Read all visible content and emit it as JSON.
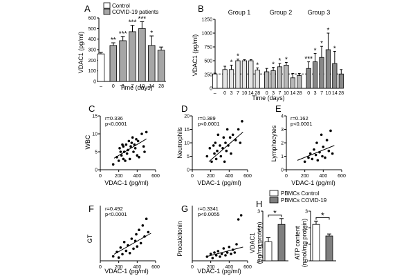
{
  "panels": {
    "A": {
      "letter": "A",
      "ylabel": "VDAC1 (pg/ml)",
      "xlabel": "Time (days)",
      "yticks": [
        0,
        100,
        200,
        300,
        400,
        500,
        600
      ],
      "legend": [
        {
          "label": "Control",
          "fill": "#ffffff"
        },
        {
          "label": "COVID-19 patients",
          "fill": "#a6a6a6"
        }
      ]
    },
    "B": {
      "letter": "B",
      "ylabel": "VDAC1 (pg/ml)",
      "xlabel": "Time (days)",
      "yticks": [
        0,
        250,
        500,
        750,
        1000,
        1250
      ],
      "group_titles": [
        "Group 1",
        "Group 2",
        "Group 3"
      ]
    },
    "C": {
      "letter": "C",
      "ylabel": "WBC",
      "xlabel": "VDAC-1 (pg/ml)",
      "r": "r=0.336",
      "p": "p<0.0001"
    },
    "D": {
      "letter": "D",
      "ylabel": "Neutrophils",
      "xlabel": "VDAC-1 (pg/ml)",
      "r": "r=0.389",
      "p": "p<0.0001"
    },
    "E": {
      "letter": "E",
      "ylabel": "Lymphocytes",
      "xlabel": "VDAC-1 (pg/ml)",
      "r": "r=0.162",
      "p": "p<0.0001"
    },
    "F": {
      "letter": "F",
      "ylabel": "GT",
      "xlabel": "VDAC-1 (pg/ml)",
      "r": "r=0.492",
      "p": "p<0.0001"
    },
    "G": {
      "letter": "G",
      "ylabel": "Procalcitonin",
      "xlabel": "VDAC-1 (pg/ml)",
      "r": "r=0.3341",
      "p": "p<0.0055"
    },
    "H": {
      "letter": "H",
      "legend": [
        {
          "label": "PBMCs Control",
          "fill": "#ffffff"
        },
        {
          "label": "PBMCs COVID-19",
          "fill": "#7f7f7f"
        }
      ],
      "left_ylabel_1": "VDAC1",
      "left_ylabel_2": "(pg/mg protein)",
      "right_ylabel_1": "ATP content",
      "right_ylabel_2": "(nmol/mg protein)"
    }
  },
  "chart_data": [
    {
      "panel": "A",
      "type": "bar",
      "categories": [
        "–",
        "0",
        "3",
        "7",
        "10",
        "14",
        "28"
      ],
      "values": [
        260,
        340,
        385,
        470,
        500,
        340,
        295
      ],
      "errors": [
        15,
        25,
        40,
        60,
        65,
        90,
        30
      ],
      "fills": [
        "#ffffff",
        "#a6a6a6",
        "#a6a6a6",
        "#a6a6a6",
        "#a6a6a6",
        "#a6a6a6",
        "#a6a6a6"
      ],
      "significance": [
        "",
        "**",
        "***",
        "***",
        "***",
        "*",
        ""
      ],
      "ylim": [
        0,
        600
      ]
    },
    {
      "panel": "B",
      "type": "bar",
      "categories": [
        "–",
        "0",
        "3",
        "7",
        "10",
        "14",
        "28",
        "0",
        "3",
        "7",
        "10",
        "14",
        "28",
        "0",
        "3",
        "7",
        "10",
        "14",
        "28"
      ],
      "values": [
        260,
        340,
        340,
        500,
        500,
        500,
        330,
        300,
        320,
        390,
        420,
        190,
        230,
        360,
        480,
        560,
        700,
        450,
        260
      ],
      "errors": [
        15,
        60,
        80,
        30,
        20,
        20,
        40,
        60,
        60,
        60,
        50,
        80,
        40,
        120,
        150,
        200,
        300,
        220,
        80
      ],
      "fills": [
        "#ffffff",
        "#e4e4e4",
        "#e4e4e4",
        "#e4e4e4",
        "#e4e4e4",
        "#e4e4e4",
        "#e4e4e4",
        "#b8b8b8",
        "#b8b8b8",
        "#b8b8b8",
        "#b8b8b8",
        "#b8b8b8",
        "#b8b8b8",
        "#888888",
        "#888888",
        "#888888",
        "#888888",
        "#888888",
        "#888888"
      ],
      "significance": [
        "",
        "",
        "*",
        "*",
        "",
        "",
        "*",
        "",
        "*",
        "*",
        "*",
        "",
        "",
        "***",
        "*",
        "*",
        "*",
        "*",
        ""
      ],
      "baseline": 260,
      "ylim": [
        0,
        1250
      ]
    },
    {
      "panel": "C",
      "type": "scatter",
      "x": [
        140,
        180,
        200,
        210,
        220,
        230,
        240,
        250,
        250,
        260,
        270,
        280,
        290,
        300,
        310,
        320,
        330,
        340,
        350,
        360,
        370,
        380,
        390,
        400,
        410,
        420,
        450,
        470,
        480,
        500
      ],
      "y": [
        1.5,
        3.5,
        2.5,
        6,
        5,
        4,
        7,
        3,
        6.5,
        5,
        2.5,
        7,
        4.5,
        5.5,
        8,
        3,
        6.5,
        7.5,
        9,
        5,
        7,
        6,
        8.5,
        4,
        8,
        3.5,
        10,
        6.5,
        5,
        10.5
      ],
      "regression": {
        "x": [
          150,
          500
        ],
        "y": [
          3.2,
          8.6
        ]
      },
      "xlim": [
        0,
        600
      ],
      "ylim": [
        0,
        15
      ],
      "xticks": [
        0,
        200,
        400,
        600
      ],
      "yticks": [
        0,
        5,
        10,
        15
      ]
    },
    {
      "panel": "D",
      "type": "scatter",
      "x": [
        160,
        190,
        210,
        230,
        240,
        250,
        260,
        270,
        280,
        300,
        310,
        330,
        340,
        350,
        360,
        370,
        380,
        390,
        410,
        420,
        440,
        470,
        500,
        520,
        540
      ],
      "y": [
        5,
        8,
        3,
        9,
        6,
        10,
        4,
        7,
        13,
        9,
        5,
        8,
        12,
        3,
        10,
        7,
        15,
        9,
        12,
        6,
        13,
        11,
        15,
        10,
        18
      ],
      "regression": {
        "x": [
          180,
          550
        ],
        "y": [
          3,
          14
        ]
      },
      "xlim": [
        0,
        600
      ],
      "ylim": [
        0,
        20
      ],
      "xticks": [
        0,
        200,
        400,
        600
      ],
      "yticks": [
        0,
        5,
        10,
        15,
        20
      ]
    },
    {
      "panel": "E",
      "type": "scatter",
      "x": [
        200,
        240,
        260,
        280,
        300,
        320,
        330,
        340,
        360,
        380,
        390,
        400,
        420,
        440,
        460,
        480,
        500
      ],
      "y": [
        0.6,
        0.9,
        1.2,
        0.8,
        1.5,
        1.1,
        2.0,
        0.7,
        1.3,
        2.6,
        1.0,
        1.7,
        0.9,
        2.2,
        1.4,
        2.9,
        1.2
      ],
      "regression": {
        "x": [
          120,
          520
        ],
        "y": [
          0.7,
          1.8
        ]
      },
      "xlim": [
        0,
        600
      ],
      "ylim": [
        0,
        4
      ],
      "xticks": [
        0,
        200,
        400,
        600
      ],
      "yticks": [
        0,
        1,
        2,
        3,
        4
      ]
    },
    {
      "panel": "F",
      "type": "scatter",
      "x": [
        140,
        180,
        200,
        220,
        240,
        260,
        280,
        300,
        320,
        340,
        360,
        380,
        390,
        400,
        420,
        440,
        460,
        480,
        500,
        520
      ],
      "y": [
        20,
        40,
        15,
        60,
        30,
        85,
        45,
        70,
        35,
        100,
        55,
        90,
        120,
        65,
        140,
        80,
        160,
        110,
        190,
        130
      ],
      "regression": {
        "x": [
          150,
          550
        ],
        "y": [
          30,
          125
        ]
      },
      "xlim": [
        0,
        600
      ],
      "ylim": [
        0,
        250
      ],
      "xticks": [
        0,
        200,
        400,
        600
      ]
    },
    {
      "panel": "G",
      "type": "scatter",
      "x": [
        160,
        200,
        220,
        240,
        260,
        280,
        300,
        320,
        340,
        360,
        380,
        400,
        420,
        440,
        460,
        480,
        500,
        530
      ],
      "y": [
        0.3,
        0.5,
        0.2,
        0.6,
        0.4,
        0.7,
        0.3,
        0.5,
        0.9,
        0.4,
        0.6,
        1.0,
        0.5,
        0.8,
        0.6,
        1.2,
        3.0,
        3.3
      ],
      "regression": {
        "x": [
          150,
          550
        ],
        "y": [
          0.3,
          1.0
        ]
      },
      "xlim": [
        0,
        600
      ],
      "ylim": [
        0,
        4
      ],
      "xticks": [
        0,
        200,
        400,
        600
      ]
    },
    {
      "panel": "H-left",
      "type": "bar",
      "categories": [
        "PBMCs Control",
        "PBMCs COVID-19"
      ],
      "values": [
        1.15,
        2.2
      ],
      "errors": [
        0.25,
        0.35
      ],
      "fills": [
        "#ffffff",
        "#7f7f7f"
      ],
      "significance": "*",
      "ylim": [
        0,
        3
      ],
      "yticks": [
        0,
        1,
        2,
        3
      ]
    },
    {
      "panel": "H-right",
      "type": "bar",
      "categories": [
        "PBMCs Control",
        "PBMCs COVID-19"
      ],
      "values": [
        2.2,
        1.5
      ],
      "errors": [
        0.2,
        0.12
      ],
      "fills": [
        "#ffffff",
        "#7f7f7f"
      ],
      "significance": "*",
      "ylim": [
        0,
        3
      ],
      "yticks": [
        0,
        1,
        2,
        3
      ]
    }
  ]
}
